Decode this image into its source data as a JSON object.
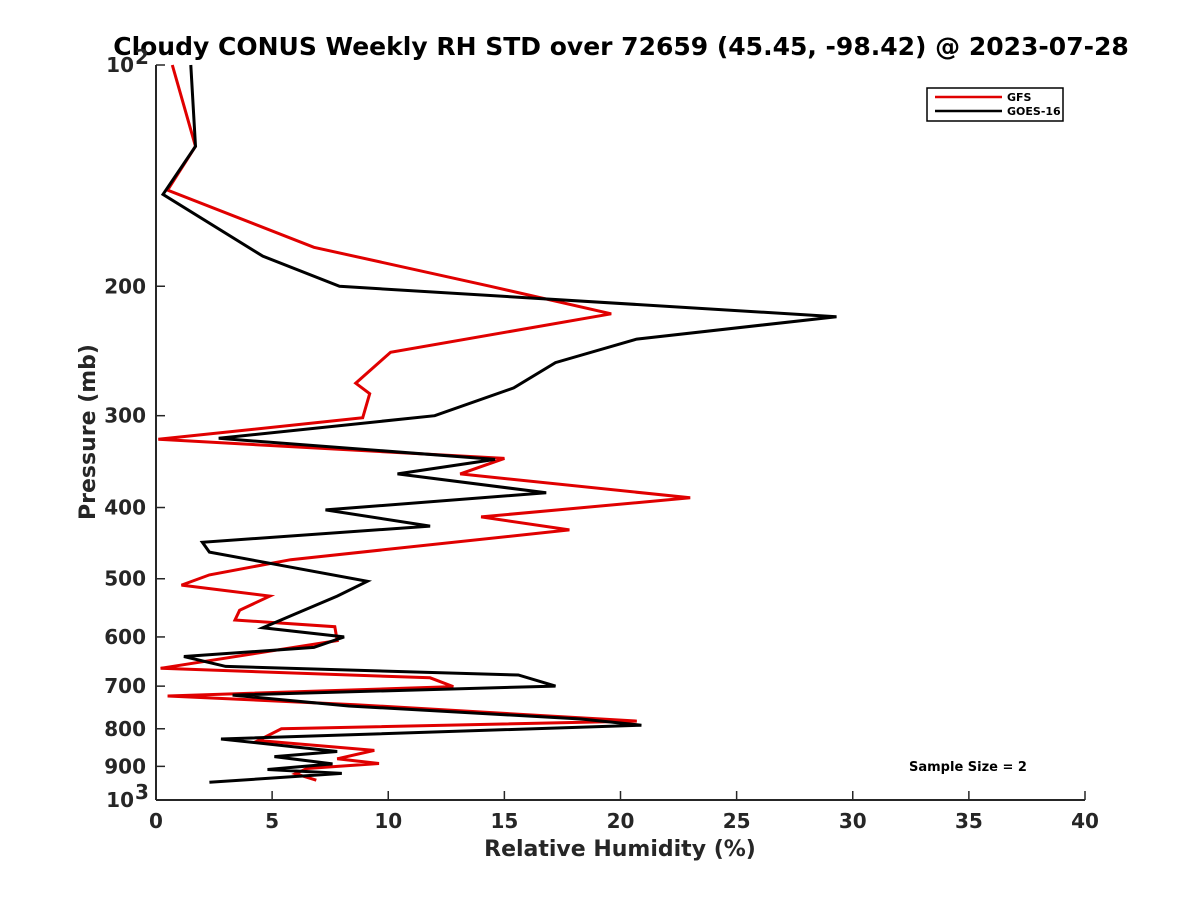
{
  "chart_data": {
    "type": "line",
    "title": "Cloudy CONUS Weekly RH STD over 72659 (45.45, -98.42) @ 2023-07-28",
    "xlabel": "Relative Humidity (%)",
    "ylabel": "Pressure (mb)",
    "xlim": [
      0,
      40
    ],
    "ylim": [
      100,
      1000
    ],
    "y_scale": "log",
    "y_reversed": true,
    "x_ticks": [
      "0",
      "5",
      "10",
      "15",
      "20",
      "25",
      "30",
      "35",
      "40"
    ],
    "x_tick_values": [
      0,
      5,
      10,
      15,
      20,
      25,
      30,
      35,
      40
    ],
    "y_ticks": [
      {
        "value": 100,
        "base": "10",
        "exp": "2"
      },
      {
        "value": 200,
        "label": "200"
      },
      {
        "value": 300,
        "label": "300"
      },
      {
        "value": 400,
        "label": "400"
      },
      {
        "value": 500,
        "label": "500"
      },
      {
        "value": 600,
        "label": "600"
      },
      {
        "value": 700,
        "label": "700"
      },
      {
        "value": 800,
        "label": "800"
      },
      {
        "value": 900,
        "label": "900"
      },
      {
        "value": 1000,
        "base": "10",
        "exp": "3"
      }
    ],
    "legend_position": "top-right",
    "grid": false,
    "annotation": "Sample Size = 2",
    "series": [
      {
        "name": "GFS",
        "color": "#e00000",
        "x": [
          0.7,
          1.7,
          0.5,
          6.8,
          14.4,
          19.6,
          10.1,
          8.6,
          9.2,
          8.9,
          0.1,
          15.0,
          13.1,
          23.0,
          14.0,
          17.8,
          5.8,
          2.3,
          1.1,
          4.9,
          3.6,
          3.4,
          7.7,
          7.8,
          0.2,
          11.8,
          12.8,
          0.5,
          8.6,
          20.7,
          5.4,
          4.4,
          9.4,
          7.8,
          9.6,
          6.5,
          6.0,
          6.9
        ],
        "y": [
          100,
          129,
          148,
          177,
          200,
          218,
          246,
          271,
          280,
          302,
          323,
          343,
          360,
          388,
          412,
          429,
          471,
          494,
          510,
          528,
          552,
          569,
          581,
          607,
          662,
          682,
          701,
          722,
          742,
          781,
          800,
          830,
          856,
          879,
          892,
          906,
          921,
          940
        ]
      },
      {
        "name": "GOES-16",
        "color": "#000000",
        "x": [
          1.5,
          1.7,
          0.3,
          4.6,
          7.9,
          29.3,
          20.7,
          17.2,
          15.4,
          12.0,
          2.7,
          14.6,
          10.4,
          16.8,
          7.3,
          11.8,
          2.0,
          2.3,
          9.1,
          7.8,
          5.9,
          4.6,
          8.1,
          6.8,
          1.2,
          3.0,
          15.6,
          17.2,
          3.3,
          8.3,
          18.3,
          20.9,
          2.8,
          7.8,
          5.1,
          7.6,
          4.8,
          8.0,
          2.3
        ],
        "y": [
          100,
          129,
          150,
          182,
          200,
          220,
          236,
          254,
          275,
          300,
          322,
          344,
          360,
          382,
          403,
          424,
          446,
          460,
          504,
          528,
          560,
          583,
          600,
          620,
          638,
          658,
          676,
          700,
          720,
          745,
          776,
          791,
          826,
          859,
          873,
          893,
          909,
          920,
          946
        ]
      }
    ]
  }
}
